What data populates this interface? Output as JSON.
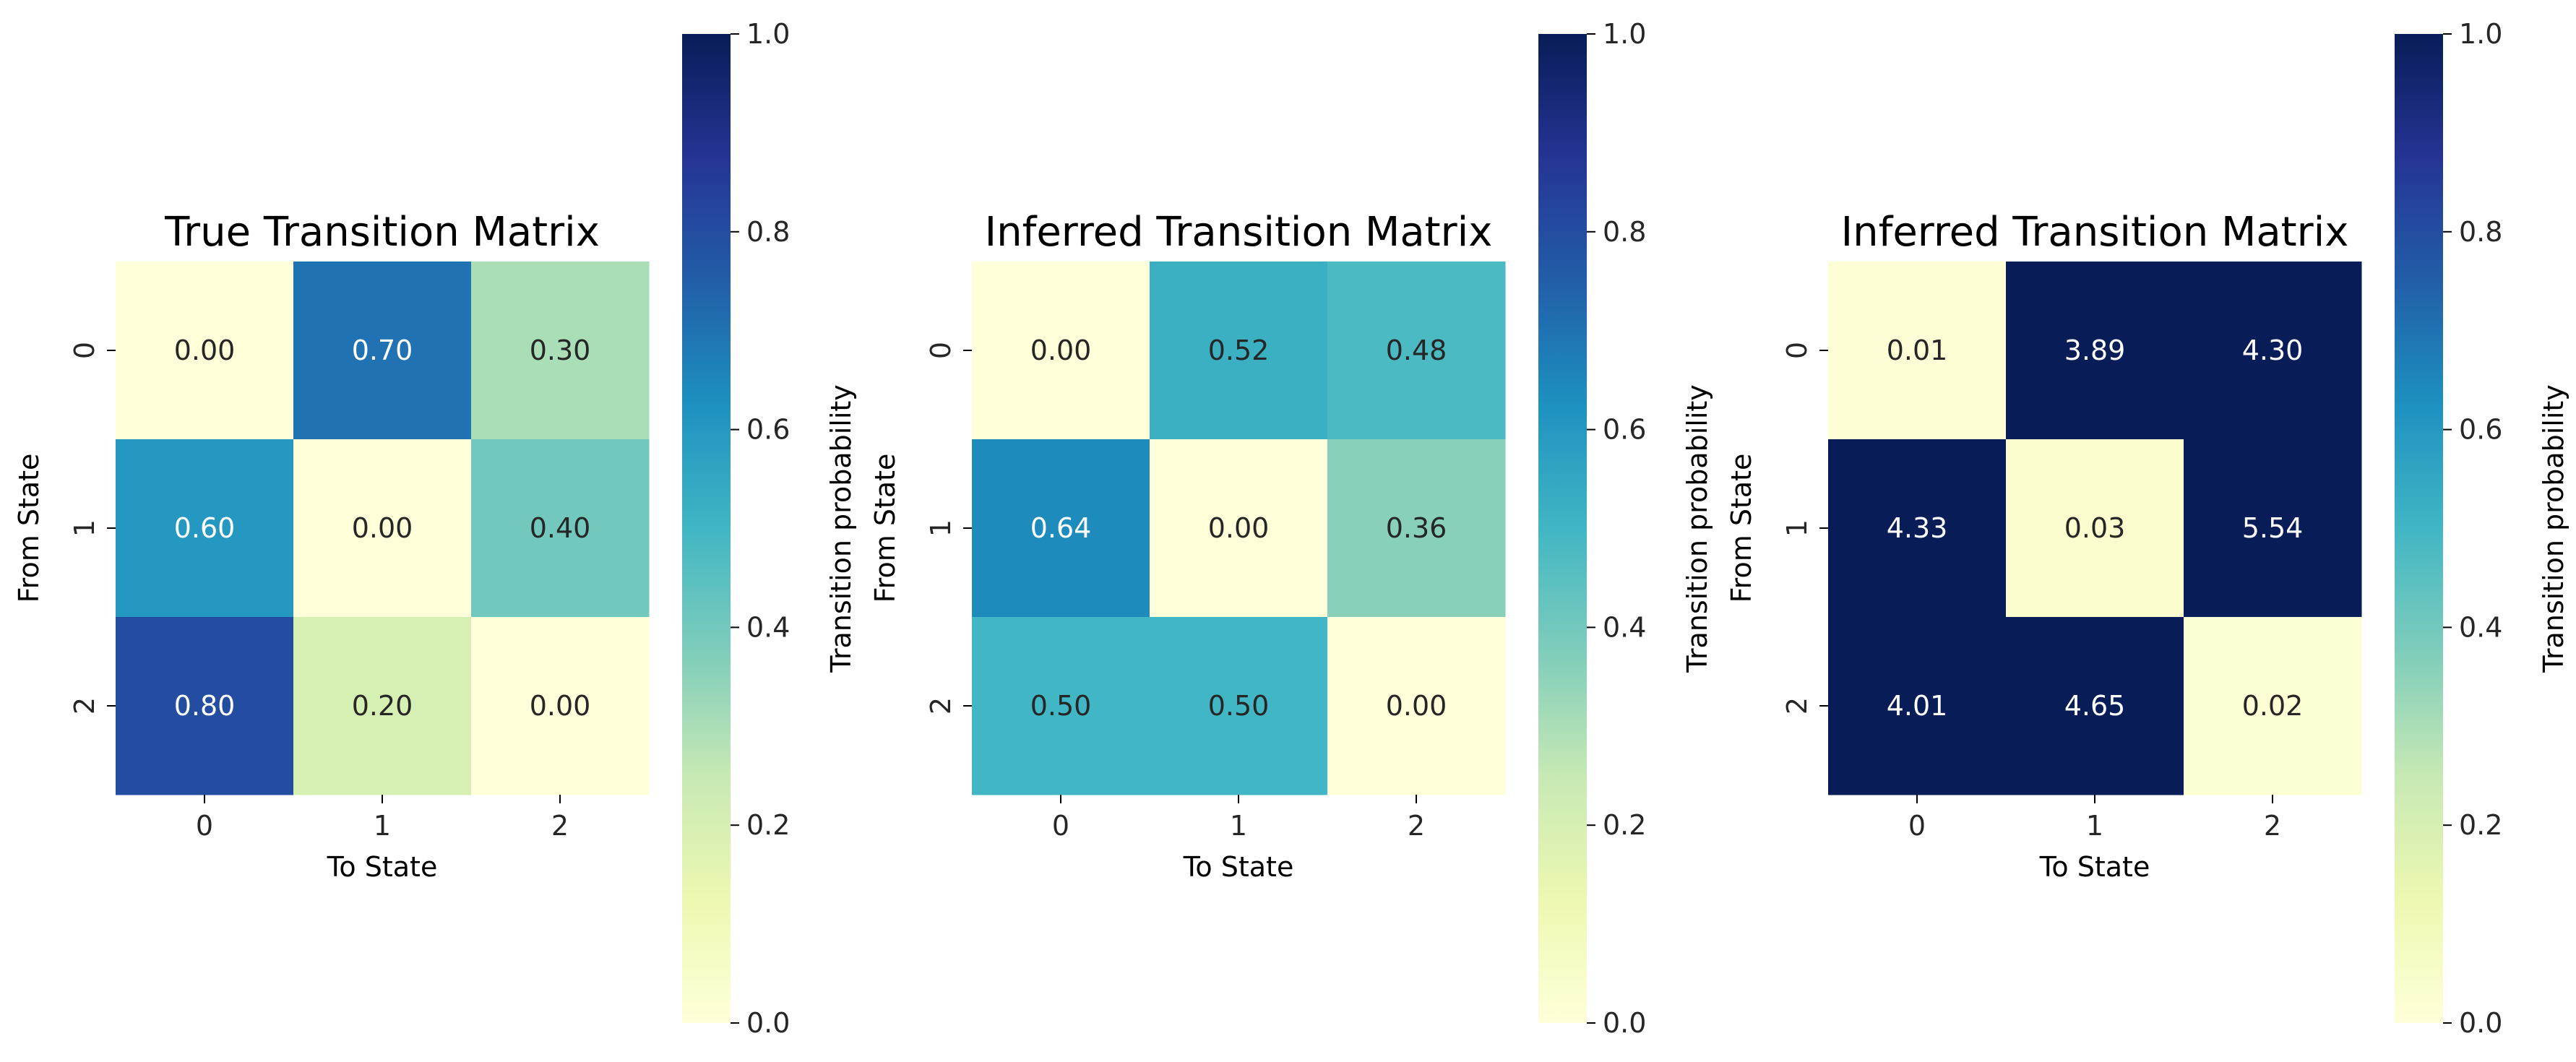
{
  "figure": {
    "colormap": "YlGnBu",
    "colormap_stops": [
      "#ffffd9",
      "#edf8b1",
      "#c7e9b4",
      "#7fcdbb",
      "#41b6c4",
      "#1d91c0",
      "#225ea8",
      "#253494",
      "#081d58"
    ]
  },
  "chart_data": [
    {
      "type": "heatmap",
      "title": "True Transition Matrix",
      "xlabel": "To State",
      "ylabel": "From State",
      "x_categories": [
        "0",
        "1",
        "2"
      ],
      "y_categories": [
        "0",
        "1",
        "2"
      ],
      "values": [
        [
          0.0,
          0.7,
          0.3
        ],
        [
          0.6,
          0.0,
          0.4
        ],
        [
          0.8,
          0.2,
          0.0
        ]
      ],
      "annotations": [
        [
          "0.00",
          "0.70",
          "0.30"
        ],
        [
          "0.60",
          "0.00",
          "0.40"
        ],
        [
          "0.80",
          "0.20",
          "0.00"
        ]
      ],
      "color_range": [
        0.0,
        1.0
      ],
      "colorbar": {
        "label": "Transition probability",
        "ticks": [
          "0.0",
          "0.2",
          "0.4",
          "0.6",
          "0.8",
          "1.0"
        ]
      }
    },
    {
      "type": "heatmap",
      "title": "Inferred Transition Matrix",
      "xlabel": "To State",
      "ylabel": "From State",
      "x_categories": [
        "0",
        "1",
        "2"
      ],
      "y_categories": [
        "0",
        "1",
        "2"
      ],
      "values": [
        [
          0.0,
          0.52,
          0.48
        ],
        [
          0.64,
          0.0,
          0.36
        ],
        [
          0.5,
          0.5,
          0.0
        ]
      ],
      "annotations": [
        [
          "0.00",
          "0.52",
          "0.48"
        ],
        [
          "0.64",
          "0.00",
          "0.36"
        ],
        [
          "0.50",
          "0.50",
          "0.00"
        ]
      ],
      "color_range": [
        0.0,
        1.0
      ],
      "colorbar": {
        "label": "Transition probability",
        "ticks": [
          "0.0",
          "0.2",
          "0.4",
          "0.6",
          "0.8",
          "1.0"
        ]
      }
    },
    {
      "type": "heatmap",
      "title": "Inferred Transition Matrix",
      "xlabel": "To State",
      "ylabel": "From State",
      "x_categories": [
        "0",
        "1",
        "2"
      ],
      "y_categories": [
        "0",
        "1",
        "2"
      ],
      "values": [
        [
          0.01,
          3.89,
          4.3
        ],
        [
          4.33,
          0.03,
          5.54
        ],
        [
          4.01,
          4.65,
          0.02
        ]
      ],
      "annotations": [
        [
          "0.01",
          "3.89",
          "4.30"
        ],
        [
          "4.33",
          "0.03",
          "5.54"
        ],
        [
          "4.01",
          "4.65",
          "0.02"
        ]
      ],
      "color_range": [
        0.0,
        1.0
      ],
      "colorbar": {
        "label": "Transition probability",
        "ticks": [
          "0.0",
          "0.2",
          "0.4",
          "0.6",
          "0.8",
          "1.0"
        ]
      }
    }
  ]
}
